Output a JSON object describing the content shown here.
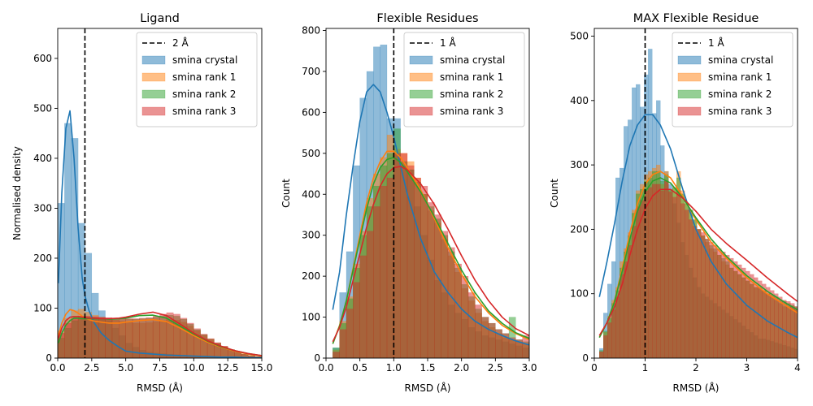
{
  "colors": {
    "smina_crystal": "#1f77b4",
    "smina_rank_1": "#ff7f0e",
    "smina_rank_2": "#2ca02c",
    "smina_rank_3": "#d62728",
    "threshold_line": "#000000"
  },
  "chart_data": [
    {
      "type": "histogram",
      "title": "Ligand",
      "xlabel": "RMSD (Å)",
      "ylabel": "Normalised density",
      "xlim": [
        0,
        15
      ],
      "ylim": [
        0,
        660
      ],
      "xticks": [
        0.0,
        2.5,
        5.0,
        7.5,
        10.0,
        12.5,
        15.0
      ],
      "xtick_labels": [
        "0.0",
        "2.5",
        "5.0",
        "7.5",
        "10.0",
        "12.5",
        "15.0"
      ],
      "yticks": [
        0,
        100,
        200,
        300,
        400,
        500,
        600
      ],
      "ytick_labels": [
        "0",
        "100",
        "200",
        "300",
        "400",
        "500",
        "600"
      ],
      "threshold": {
        "x": 2,
        "label": "2 Å"
      },
      "legend": {
        "position": "top-right",
        "entries": [
          "2 Å",
          "smina crystal",
          "smina rank 1",
          "smina rank 2",
          "smina rank 3"
        ]
      },
      "grid": false,
      "kde": {
        "x": [
          0.05,
          0.3,
          0.6,
          0.9,
          1.2,
          1.5,
          1.8,
          2.0,
          2.3,
          2.7,
          3.2,
          3.8,
          4.5,
          5.0,
          6.0,
          7.0,
          8.0,
          9.0,
          10.0,
          11.0,
          12.0,
          13.0,
          14.0,
          15.0
        ],
        "series": [
          {
            "name": "smina crystal",
            "values": [
              150,
              330,
              460,
              495,
              400,
              260,
              160,
              125,
              95,
              70,
              50,
              35,
              22,
              14,
              10,
              8,
              6,
              5,
              4,
              3,
              2,
              2,
              1,
              1
            ]
          },
          {
            "name": "smina rank 1",
            "values": [
              45,
              70,
              88,
              97,
              95,
              90,
              84,
              80,
              77,
              74,
              72,
              70,
              70,
              72,
              75,
              77,
              73,
              60,
              45,
              32,
              22,
              14,
              8,
              4
            ]
          },
          {
            "name": "smina rank 2",
            "values": [
              30,
              50,
              66,
              75,
              80,
              80,
              79,
              79,
              79,
              79,
              79,
              78,
              79,
              80,
              85,
              86,
              80,
              64,
              48,
              34,
              23,
              15,
              9,
              5
            ]
          },
          {
            "name": "smina rank 3",
            "values": [
              40,
              60,
              75,
              82,
              83,
              83,
              82,
              81,
              80,
              80,
              79,
              79,
              80,
              82,
              88,
              92,
              85,
              68,
              50,
              35,
              24,
              15,
              9,
              5
            ]
          }
        ]
      },
      "histogram": {
        "bin_start": 0,
        "bin_width": 0.5,
        "series": [
          {
            "name": "smina crystal",
            "values": [
              310,
              470,
              440,
              270,
              210,
              130,
              95,
              75,
              60,
              45,
              30,
              22,
              16,
              12,
              10,
              9,
              8,
              7,
              6,
              5,
              4,
              4,
              3,
              3,
              2,
              2,
              2,
              1,
              1,
              1
            ]
          },
          {
            "name": "smina rank 1",
            "values": [
              55,
              80,
              95,
              98,
              92,
              86,
              82,
              78,
              76,
              74,
              72,
              70,
              70,
              71,
              73,
              75,
              77,
              76,
              72,
              64,
              55,
              46,
              38,
              30,
              23,
              17,
              12,
              8,
              5,
              3
            ]
          },
          {
            "name": "smina rank 2",
            "values": [
              40,
              60,
              75,
              80,
              82,
              80,
              79,
              79,
              79,
              79,
              78,
              78,
              79,
              80,
              82,
              84,
              86,
              84,
              78,
              68,
              57,
              47,
              38,
              30,
              23,
              17,
              12,
              8,
              5,
              3
            ]
          },
          {
            "name": "smina rank 3",
            "values": [
              50,
              70,
              80,
              84,
              84,
              83,
              82,
              81,
              80,
              80,
              79,
              79,
              80,
              81,
              84,
              88,
              91,
              88,
              80,
              70,
              59,
              48,
              39,
              31,
              24,
              17,
              12,
              8,
              5,
              3
            ]
          }
        ]
      }
    },
    {
      "type": "histogram",
      "title": "Flexible Residues",
      "xlabel": "RMSD (Å)",
      "ylabel": "Count",
      "xlim": [
        0,
        3
      ],
      "ylim": [
        0,
        805
      ],
      "xticks": [
        0.0,
        0.5,
        1.0,
        1.5,
        2.0,
        2.5,
        3.0
      ],
      "xtick_labels": [
        "0.0",
        "0.5",
        "1.0",
        "1.5",
        "2.0",
        "2.5",
        "3.0"
      ],
      "yticks": [
        0,
        100,
        200,
        300,
        400,
        500,
        600,
        700,
        800
      ],
      "ytick_labels": [
        "0",
        "100",
        "200",
        "300",
        "400",
        "500",
        "600",
        "700",
        "800"
      ],
      "threshold": {
        "x": 1,
        "label": "1 Å"
      },
      "legend": {
        "position": "top-right",
        "entries": [
          "1 Å",
          "smina crystal",
          "smina rank 1",
          "smina rank 2",
          "smina rank 3"
        ]
      },
      "grid": false,
      "kde": {
        "x": [
          0.1,
          0.2,
          0.3,
          0.4,
          0.5,
          0.6,
          0.7,
          0.8,
          0.9,
          1.0,
          1.1,
          1.2,
          1.4,
          1.6,
          1.8,
          2.0,
          2.2,
          2.4,
          2.6,
          2.8,
          3.0
        ],
        "series": [
          {
            "name": "smina crystal",
            "values": [
              118,
              210,
              350,
              470,
              578,
              650,
              668,
              650,
              600,
              540,
              470,
              400,
              290,
              210,
              160,
              120,
              90,
              70,
              55,
              42,
              32
            ]
          },
          {
            "name": "smina rank 1",
            "values": [
              35,
              80,
              140,
              220,
              300,
              380,
              440,
              480,
              505,
              505,
              490,
              465,
              410,
              340,
              270,
              205,
              150,
              110,
              80,
              60,
              45
            ]
          },
          {
            "name": "smina rank 2",
            "values": [
              35,
              78,
              140,
              215,
              290,
              365,
              425,
              465,
              485,
              490,
              478,
              455,
              405,
              345,
              280,
              215,
              160,
              115,
              85,
              62,
              48
            ]
          },
          {
            "name": "smina rank 3",
            "values": [
              40,
              75,
              125,
              190,
              255,
              320,
              375,
              420,
              450,
              465,
              468,
              460,
              425,
              375,
              315,
              250,
              190,
              140,
              100,
              72,
              55
            ]
          }
        ]
      },
      "histogram": {
        "bin_start": 0.1,
        "bin_width": 0.1,
        "series": [
          {
            "name": "smina crystal",
            "values": [
              25,
              160,
              260,
              470,
              635,
              700,
              760,
              765,
              585,
              585,
              470,
              460,
              370,
              300,
              240,
              190,
              160,
              130,
              110,
              95,
              75,
              65,
              55,
              50,
              45,
              40,
              35,
              30,
              25
            ]
          },
          {
            "name": "smina rank 1",
            "values": [
              20,
              90,
              150,
              230,
              310,
              390,
              450,
              490,
              545,
              510,
              500,
              480,
              440,
              400,
              360,
              330,
              290,
              250,
              210,
              170,
              140,
              110,
              90,
              75,
              60,
              50,
              45,
              40,
              35
            ]
          },
          {
            "name": "smina rank 2",
            "values": [
              25,
              85,
              145,
              220,
              300,
              370,
              420,
              470,
              500,
              560,
              480,
              460,
              430,
              400,
              370,
              340,
              300,
              260,
              220,
              180,
              150,
              120,
              100,
              85,
              70,
              60,
              100,
              45,
              40
            ]
          },
          {
            "name": "smina rank 3",
            "values": [
              15,
              70,
              120,
              185,
              250,
              310,
              370,
              420,
              440,
              500,
              500,
              470,
              440,
              420,
              380,
              350,
              310,
              270,
              230,
              200,
              160,
              130,
              100,
              85,
              70,
              60,
              50,
              45,
              55
            ]
          }
        ]
      }
    },
    {
      "type": "histogram",
      "title": "MAX Flexible Residue",
      "xlabel": "RMSD (Å)",
      "ylabel": "Count",
      "xlim": [
        0,
        4
      ],
      "ylim": [
        0,
        512
      ],
      "xticks": [
        0,
        1,
        2,
        3,
        4
      ],
      "xtick_labels": [
        "0",
        "1",
        "2",
        "3",
        "4"
      ],
      "yticks": [
        0,
        100,
        200,
        300,
        400,
        500
      ],
      "ytick_labels": [
        "0",
        "100",
        "200",
        "300",
        "400",
        "500"
      ],
      "threshold": {
        "x": 1,
        "label": "1 Å"
      },
      "legend": {
        "position": "top-right",
        "entries": [
          "1 Å",
          "smina crystal",
          "smina rank 1",
          "smina rank 2",
          "smina rank 3"
        ]
      },
      "grid": false,
      "kde": {
        "x": [
          0.1,
          0.25,
          0.4,
          0.55,
          0.7,
          0.85,
          1.0,
          1.15,
          1.3,
          1.5,
          1.75,
          2.0,
          2.3,
          2.6,
          3.0,
          3.4,
          3.8,
          4.0
        ],
        "series": [
          {
            "name": "smina crystal",
            "values": [
              95,
              150,
              210,
              275,
              330,
              362,
              378,
              378,
              362,
              325,
              260,
              200,
              150,
              115,
              82,
              58,
              40,
              32
            ]
          },
          {
            "name": "smina rank 1",
            "values": [
              32,
              55,
              90,
              140,
              195,
              240,
              270,
              285,
              290,
              280,
              250,
              215,
              180,
              155,
              125,
              100,
              80,
              70
            ]
          },
          {
            "name": "smina rank 2",
            "values": [
              32,
              55,
              88,
              135,
              185,
              228,
              258,
              275,
              280,
              272,
              248,
              218,
              185,
              158,
              128,
              104,
              84,
              75
            ]
          },
          {
            "name": "smina rank 3",
            "values": [
              35,
              55,
              80,
              115,
              160,
              200,
              232,
              252,
              262,
              262,
              248,
              228,
              200,
              178,
              152,
              125,
              100,
              88
            ]
          }
        ]
      },
      "histogram": {
        "bin_start": 0.1,
        "bin_width": 0.08,
        "series": [
          {
            "name": "smina crystal",
            "values": [
              15,
              70,
              115,
              150,
              280,
              295,
              360,
              370,
              420,
              425,
              390,
              440,
              480,
              380,
              400,
              330,
              290,
              270,
              240,
              210,
              180,
              160,
              140,
              125,
              110,
              100,
              95,
              90,
              85,
              80,
              75,
              70,
              65,
              60,
              55,
              50,
              45,
              40,
              35,
              30,
              30,
              28,
              26,
              24,
              22,
              20,
              18,
              16,
              14
            ]
          },
          {
            "name": "smina rank 1",
            "values": [
              10,
              40,
              65,
              90,
              110,
              150,
              170,
              195,
              230,
              260,
              270,
              285,
              290,
              295,
              300,
              270,
              290,
              260,
              265,
              290,
              260,
              240,
              230,
              215,
              200,
              190,
              180,
              170,
              165,
              160,
              150,
              145,
              140,
              135,
              130,
              125,
              120,
              115,
              110,
              110,
              105,
              100,
              95,
              90,
              85,
              80,
              80,
              80,
              75
            ]
          },
          {
            "name": "smina rank 2",
            "values": [
              12,
              42,
              62,
              85,
              105,
              140,
              165,
              190,
              225,
              255,
              262,
              275,
              280,
              290,
              290,
              275,
              285,
              262,
              265,
              280,
              255,
              240,
              230,
              215,
              200,
              190,
              185,
              175,
              170,
              160,
              155,
              150,
              140,
              135,
              130,
              125,
              120,
              115,
              110,
              108,
              104,
              100,
              98,
              95,
              90,
              88,
              85,
              82,
              80
            ]
          },
          {
            "name": "smina rank 3",
            "values": [
              10,
              35,
              55,
              75,
              95,
              130,
              150,
              175,
              205,
              235,
              245,
              260,
              265,
              270,
              270,
              260,
              275,
              258,
              250,
              260,
              240,
              230,
              215,
              205,
              200,
              195,
              185,
              180,
              175,
              170,
              165,
              160,
              155,
              150,
              145,
              140,
              135,
              130,
              125,
              120,
              115,
              110,
              105,
              100,
              95,
              90,
              88,
              85,
              80
            ]
          }
        ]
      }
    }
  ]
}
